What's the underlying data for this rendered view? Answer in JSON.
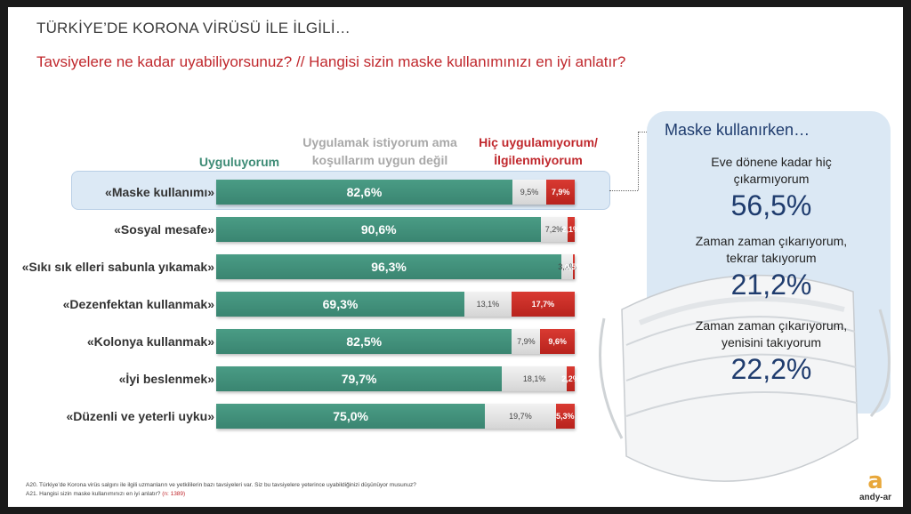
{
  "header": {
    "title": "TÜRKİYE’DE KORONA VİRÜSÜ İLE İLGİLİ…",
    "subtitle": "Tavsiyelere ne kadar uyabiliyorsunuz? // Hangisi sizin maske kullanımınızı en iyi anlatır?"
  },
  "colors": {
    "green": "#3e8c76",
    "gray": "#d9d9d9",
    "red": "#c0282d",
    "navy": "#1f3c6e",
    "panel": "#dbe8f4"
  },
  "chart_data": {
    "type": "bar",
    "orientation": "horizontal",
    "stacked": true,
    "xlim": [
      0,
      100
    ],
    "legend_placement": "top",
    "categories": [
      "«Maske kullanımı»",
      "«Sosyal mesafe»",
      "«Sıkı sık elleri sabunla yıkamak»",
      "«Dezenfektan kullanmak»",
      "«Kolonya kullanmak»",
      "«İyi beslenmek»",
      "«Düzenli ve yeterli uyku»"
    ],
    "series": [
      {
        "name": "Uyguluyorum",
        "color": "#3e8c76",
        "values": [
          82.6,
          90.6,
          96.3,
          69.3,
          82.5,
          79.7,
          75.0
        ],
        "labels": [
          "82,6%",
          "90,6%",
          "96,3%",
          "69,3%",
          "82,5%",
          "79,7%",
          "75,0%"
        ]
      },
      {
        "name": "Uygulamak istiyorum ama koşullarım uygun değil",
        "color": "#d9d9d9",
        "values": [
          9.5,
          7.2,
          3.2,
          13.1,
          7.9,
          18.1,
          19.7
        ],
        "labels": [
          "9,5%",
          "7,2%",
          "3,2%",
          "13,1%",
          "7,9%",
          "18,1%",
          "19,7%"
        ]
      },
      {
        "name": "Hiç uygulamıyorum/ İlgilenmiyorum",
        "color": "#c0282d",
        "values": [
          7.9,
          2.1,
          0.5,
          17.7,
          9.6,
          2.2,
          5.3
        ],
        "labels": [
          "7,9%",
          "2,1%",
          "0,5%",
          "17,7%",
          "9,6%",
          "2,2%",
          "5,3%"
        ]
      }
    ],
    "highlighted_category": "«Maske kullanımı»"
  },
  "legend": {
    "green_label": "Uyguluyorum",
    "gray_label_line1": "Uygulamak istiyorum ama",
    "gray_label_line2": "koşullarım uygun değil",
    "red_label_line1": "Hiç uygulamıyorum/",
    "red_label_line2": "İlgilenmiyorum"
  },
  "panel": {
    "title": "Maske kullanırken…",
    "items": [
      {
        "line1": "Eve dönene kadar hiç",
        "line2": "çıkarmıyorum",
        "value": "56,5%"
      },
      {
        "line1": "Zaman zaman çıkarıyorum,",
        "line2": "tekrar takıyorum",
        "value": "21,2%"
      },
      {
        "line1": "Zaman zaman çıkarıyorum,",
        "line2": "yenisini takıyorum",
        "value": "22,2%"
      }
    ]
  },
  "footnotes": {
    "a20": "A20. Türkiye’de Korona virüs salgını ile ilgili uzmanların ve yetkililerin bazı tavsiyeleri var. Siz bu tavsiyelere yeterince uyabildiğinizi düşünüyor musunuz?",
    "a21": "A21. Hangisi sizin maske kullanımınızı en iyi anlatır?",
    "n": "(n: 1389)"
  },
  "logo": {
    "mark": "a",
    "text": "andy-ar"
  }
}
